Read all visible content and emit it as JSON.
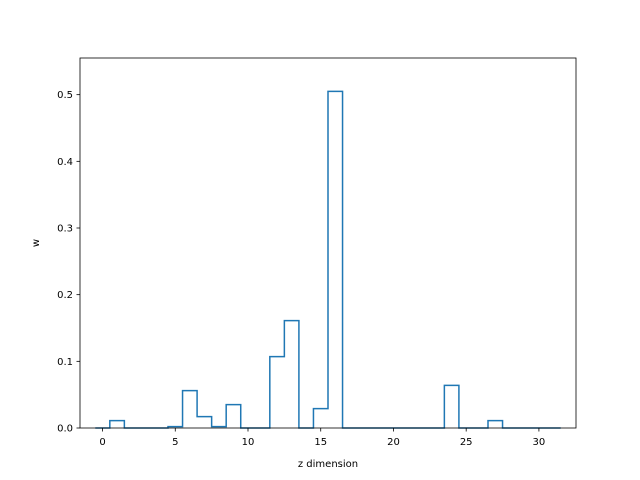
{
  "chart_data": {
    "type": "bar",
    "style": "step",
    "title": "",
    "xlabel": "z dimension",
    "ylabel": "w",
    "xlim": [
      -1.55,
      32.55
    ],
    "ylim": [
      0,
      0.555
    ],
    "xticks": [
      0,
      5,
      10,
      15,
      20,
      25,
      30
    ],
    "yticks": [
      0.0,
      0.1,
      0.2,
      0.3,
      0.4,
      0.5
    ],
    "ytick_labels": [
      "0.0",
      "0.1",
      "0.2",
      "0.3",
      "0.4",
      "0.5"
    ],
    "grid": false,
    "line_color": "#1f77b4",
    "x": [
      0,
      1,
      2,
      3,
      4,
      5,
      6,
      7,
      8,
      9,
      10,
      11,
      12,
      13,
      14,
      15,
      16,
      17,
      18,
      19,
      20,
      21,
      22,
      23,
      24,
      25,
      26,
      27,
      28,
      29,
      30,
      31
    ],
    "values": [
      0,
      0.011,
      0,
      0,
      0,
      0.002,
      0.056,
      0.017,
      0.002,
      0.035,
      0,
      0,
      0.107,
      0.161,
      0,
      0.029,
      0.505,
      0,
      0,
      0,
      0,
      0,
      0,
      0,
      0.064,
      0,
      0,
      0.011,
      0,
      0,
      0,
      0
    ]
  }
}
